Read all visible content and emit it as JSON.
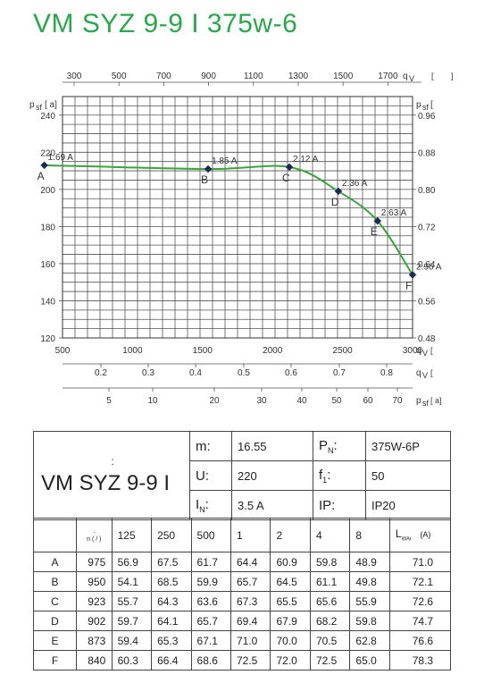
{
  "title": "VM SYZ 9-9 I 375w-6",
  "chart_data": {
    "type": "line",
    "title": "",
    "x": [
      370,
      1540,
      2120,
      2470,
      2750,
      3000
    ],
    "y": [
      213,
      211,
      212,
      199,
      183,
      154
    ],
    "point_labels": [
      "A",
      "B",
      "C",
      "D",
      "E",
      "F"
    ],
    "current_labels": [
      "1.69 A",
      "1.85 A",
      "2.12 A",
      "2.36 A",
      "2.63 A",
      "2.96 A"
    ],
    "xlim": [
      500,
      3000
    ],
    "ylim": [
      120,
      250
    ],
    "y_ticks": [
      "240",
      "220",
      "200",
      "180",
      "160",
      "140",
      "120"
    ],
    "y_right_ticks": [
      "0.96",
      "0.88",
      "0.80",
      "0.72",
      "0.64",
      "0.56",
      "0.48"
    ],
    "x_bottom_ticks": [
      "500",
      "1000",
      "1500",
      "2000",
      "2500",
      "3000"
    ],
    "x_top_ticks": [
      "300",
      "500",
      "700",
      "900",
      "1100",
      "1300",
      "1500",
      "1700"
    ],
    "x_ls_ticks": [
      "0.2",
      "0.3",
      "0.4",
      "0.5",
      "0.6",
      "0.7",
      "0.8"
    ],
    "x_pa_ticks": [
      "5",
      "10",
      "20",
      "30",
      "40",
      "50",
      "60",
      "70"
    ],
    "labels": {
      "top_right": "q",
      "top_right_sub": "V",
      "left_top": "p",
      "left_top_sub": "sf",
      "left_unit": "[ a]",
      "right_top": "p",
      "right_top_sub": "sf",
      "bottom_right": "q",
      "bottom_right_sub": "V",
      "ls_right": "q",
      "ls_right_sub": "V",
      "pa_right": "p",
      "pa_right_sub": "sf",
      "pa_unit": "[ a]"
    },
    "line_color": "#3aa53c",
    "grid": true
  },
  "specs": {
    "model": "VM SYZ 9-9 I",
    "colon": ":",
    "m_key": "m:",
    "m_val": "16.55",
    "p_key": "P",
    "p_sub": "N",
    "p_colon": ":",
    "p_val": "375W-6P",
    "u_key": "U:",
    "u_val": "220",
    "f_key": "f",
    "f_sub": "1",
    "f_colon": ":",
    "f_val": "50",
    "i_key": "I",
    "i_sub": "N",
    "i_colon": ":",
    "i_val": "3.5  A",
    "ip_key": "IP:",
    "ip_val": "IP20"
  },
  "noise_table": {
    "n_header": "n (   /   )",
    "n_header_dot": "·",
    "bands": [
      "125",
      "250",
      "500",
      "1",
      "2",
      "4",
      "8"
    ],
    "lw_header": "L",
    "lw_sub": "WAi",
    "lw_unit": "(A)",
    "rows": [
      {
        "label": "A",
        "n": "975",
        "vals": [
          "56.9",
          "67.5",
          "61.7",
          "64.4",
          "60.9",
          "59.8",
          "48.9"
        ],
        "lw": "71.0"
      },
      {
        "label": "B",
        "n": "950",
        "vals": [
          "54.1",
          "68.5",
          "59.9",
          "65.7",
          "64.5",
          "61.1",
          "49.8"
        ],
        "lw": "72.1"
      },
      {
        "label": "C",
        "n": "923",
        "vals": [
          "55.7",
          "64.3",
          "63.6",
          "67.3",
          "65.5",
          "65.6",
          "55.9"
        ],
        "lw": "72.6"
      },
      {
        "label": "D",
        "n": "902",
        "vals": [
          "59.7",
          "64.1",
          "65.7",
          "69.4",
          "67.9",
          "68.2",
          "59.8"
        ],
        "lw": "74.7"
      },
      {
        "label": "E",
        "n": "873",
        "vals": [
          "59.4",
          "65.3",
          "67.1",
          "71.0",
          "70.0",
          "70.5",
          "62.8"
        ],
        "lw": "76.6"
      },
      {
        "label": "F",
        "n": "840",
        "vals": [
          "60.3",
          "66.4",
          "68.6",
          "72.5",
          "72.0",
          "72.5",
          "65.0"
        ],
        "lw": "78.3"
      }
    ]
  }
}
